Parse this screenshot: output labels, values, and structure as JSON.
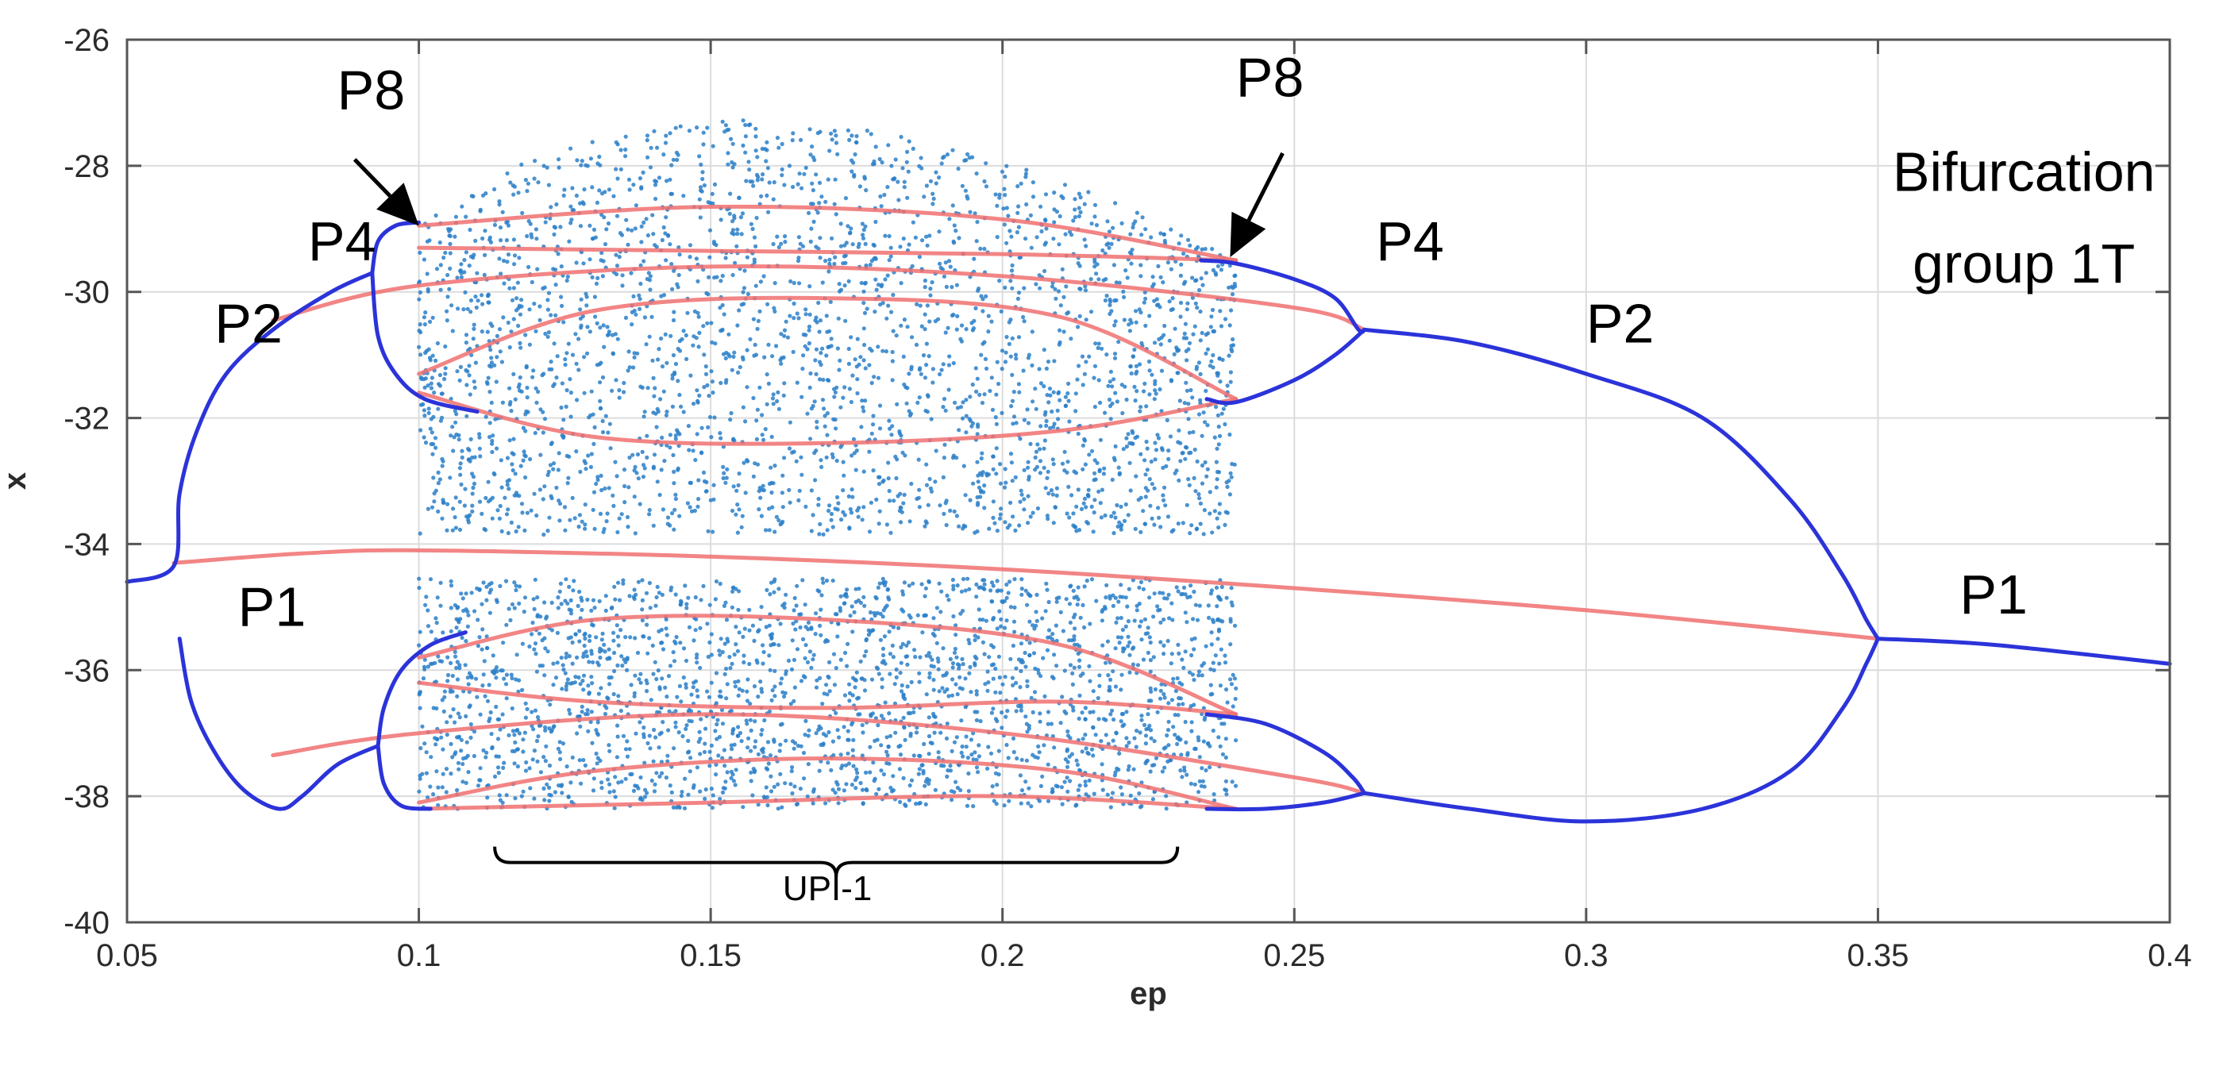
{
  "chart_data": {
    "type": "scatter",
    "title": "",
    "xlabel": "ep",
    "ylabel": "x",
    "xlim": [
      0.05,
      0.4
    ],
    "ylim": [
      -40,
      -26
    ],
    "x_ticks": [
      0.05,
      0.1,
      0.15,
      0.2,
      0.25,
      0.3,
      0.35,
      0.4
    ],
    "x_tick_labels": [
      "0.05",
      "0.1",
      "0.15",
      "0.2",
      "0.25",
      "0.3",
      "0.35",
      "0.4"
    ],
    "y_ticks": [
      -26,
      -28,
      -30,
      -32,
      -34,
      -36,
      -38,
      -40
    ],
    "y_tick_labels": [
      "-26",
      "-28",
      "-30",
      "-32",
      "-34",
      "-36",
      "-38",
      "-40"
    ],
    "grid": true,
    "colors": {
      "stable": "#2b33d9",
      "unstable": "#f07070",
      "chaos": "#2a7fc8",
      "frame": "#555555",
      "grid": "#dcdcdc"
    },
    "series": [
      {
        "kind": "stable-branch",
        "values": [
          [
            0.05,
            -34.6
          ],
          [
            0.058,
            -34.35
          ],
          [
            0.059,
            -33.2
          ],
          [
            0.062,
            -32.2
          ],
          [
            0.067,
            -31.3
          ],
          [
            0.075,
            -30.6
          ],
          [
            0.085,
            -30.0
          ],
          [
            0.092,
            -29.7
          ]
        ]
      },
      {
        "kind": "stable-branch",
        "values": [
          [
            0.059,
            -35.5
          ],
          [
            0.061,
            -36.5
          ],
          [
            0.065,
            -37.3
          ],
          [
            0.07,
            -37.9
          ],
          [
            0.076,
            -38.2
          ],
          [
            0.08,
            -38.0
          ],
          [
            0.086,
            -37.5
          ],
          [
            0.093,
            -37.2
          ]
        ]
      },
      {
        "kind": "stable-branch",
        "values": [
          [
            0.092,
            -29.7
          ],
          [
            0.093,
            -29.2
          ],
          [
            0.096,
            -28.95
          ],
          [
            0.1,
            -28.9
          ]
        ]
      },
      {
        "kind": "stable-branch",
        "values": [
          [
            0.092,
            -29.7
          ],
          [
            0.093,
            -30.7
          ],
          [
            0.096,
            -31.3
          ],
          [
            0.101,
            -31.7
          ],
          [
            0.11,
            -31.9
          ]
        ]
      },
      {
        "kind": "stable-branch",
        "values": [
          [
            0.093,
            -37.2
          ],
          [
            0.094,
            -36.6
          ],
          [
            0.097,
            -36.0
          ],
          [
            0.102,
            -35.6
          ],
          [
            0.108,
            -35.4
          ]
        ]
      },
      {
        "kind": "stable-branch",
        "values": [
          [
            0.093,
            -37.2
          ],
          [
            0.094,
            -37.8
          ],
          [
            0.097,
            -38.15
          ],
          [
            0.102,
            -38.2
          ]
        ]
      },
      {
        "kind": "stable-branch",
        "values": [
          [
            0.234,
            -29.5
          ],
          [
            0.24,
            -29.55
          ],
          [
            0.25,
            -29.8
          ],
          [
            0.257,
            -30.1
          ],
          [
            0.261,
            -30.6
          ],
          [
            0.262,
            -30.6
          ]
        ]
      },
      {
        "kind": "stable-branch",
        "values": [
          [
            0.235,
            -31.7
          ],
          [
            0.24,
            -31.75
          ],
          [
            0.25,
            -31.4
          ],
          [
            0.257,
            -31.0
          ],
          [
            0.262,
            -30.6
          ]
        ]
      },
      {
        "kind": "stable-branch",
        "values": [
          [
            0.262,
            -30.6
          ],
          [
            0.28,
            -30.8
          ],
          [
            0.3,
            -31.3
          ],
          [
            0.32,
            -32.0
          ],
          [
            0.335,
            -33.3
          ],
          [
            0.344,
            -34.5
          ],
          [
            0.348,
            -35.2
          ],
          [
            0.35,
            -35.5
          ]
        ]
      },
      {
        "kind": "stable-branch",
        "values": [
          [
            0.235,
            -36.7
          ],
          [
            0.245,
            -36.85
          ],
          [
            0.255,
            -37.3
          ],
          [
            0.26,
            -37.7
          ],
          [
            0.262,
            -37.95
          ]
        ]
      },
      {
        "kind": "stable-branch",
        "values": [
          [
            0.235,
            -38.2
          ],
          [
            0.245,
            -38.2
          ],
          [
            0.255,
            -38.1
          ],
          [
            0.262,
            -37.95
          ]
        ]
      },
      {
        "kind": "stable-branch",
        "values": [
          [
            0.262,
            -37.95
          ],
          [
            0.28,
            -38.2
          ],
          [
            0.3,
            -38.4
          ],
          [
            0.32,
            -38.2
          ],
          [
            0.335,
            -37.6
          ],
          [
            0.344,
            -36.6
          ],
          [
            0.348,
            -35.9
          ],
          [
            0.35,
            -35.5
          ]
        ]
      },
      {
        "kind": "stable-branch",
        "values": [
          [
            0.35,
            -35.5
          ],
          [
            0.37,
            -35.6
          ],
          [
            0.4,
            -35.9
          ]
        ]
      },
      {
        "kind": "unstable-branch",
        "values": [
          [
            0.058,
            -34.3
          ],
          [
            0.08,
            -34.15
          ],
          [
            0.1,
            -34.1
          ],
          [
            0.15,
            -34.2
          ],
          [
            0.2,
            -34.4
          ],
          [
            0.25,
            -34.7
          ],
          [
            0.3,
            -35.05
          ],
          [
            0.35,
            -35.5
          ]
        ]
      },
      {
        "kind": "unstable-branch",
        "values": [
          [
            0.075,
            -30.45
          ],
          [
            0.1,
            -29.9
          ],
          [
            0.15,
            -29.6
          ],
          [
            0.2,
            -29.75
          ],
          [
            0.25,
            -30.25
          ],
          [
            0.262,
            -30.6
          ]
        ]
      },
      {
        "kind": "unstable-branch",
        "values": [
          [
            0.075,
            -37.35
          ],
          [
            0.1,
            -37.0
          ],
          [
            0.15,
            -36.7
          ],
          [
            0.2,
            -37.0
          ],
          [
            0.25,
            -37.7
          ],
          [
            0.262,
            -37.95
          ]
        ]
      },
      {
        "kind": "unstable-branch",
        "values": [
          [
            0.1,
            -28.95
          ],
          [
            0.15,
            -28.65
          ],
          [
            0.2,
            -28.85
          ],
          [
            0.24,
            -29.5
          ]
        ]
      },
      {
        "kind": "unstable-branch",
        "values": [
          [
            0.1,
            -31.3
          ],
          [
            0.13,
            -30.3
          ],
          [
            0.17,
            -30.1
          ],
          [
            0.21,
            -30.4
          ],
          [
            0.24,
            -31.7
          ]
        ]
      },
      {
        "kind": "unstable-branch",
        "values": [
          [
            0.1,
            -31.6
          ],
          [
            0.13,
            -32.3
          ],
          [
            0.17,
            -32.4
          ],
          [
            0.21,
            -32.2
          ],
          [
            0.24,
            -31.7
          ]
        ]
      },
      {
        "kind": "unstable-branch",
        "values": [
          [
            0.1,
            -29.3
          ],
          [
            0.15,
            -29.35
          ],
          [
            0.2,
            -29.4
          ],
          [
            0.24,
            -29.5
          ]
        ]
      },
      {
        "kind": "unstable-branch",
        "values": [
          [
            0.1,
            -35.8
          ],
          [
            0.13,
            -35.2
          ],
          [
            0.17,
            -35.2
          ],
          [
            0.21,
            -35.6
          ],
          [
            0.24,
            -36.7
          ]
        ]
      },
      {
        "kind": "unstable-branch",
        "values": [
          [
            0.1,
            -36.2
          ],
          [
            0.13,
            -36.5
          ],
          [
            0.17,
            -36.6
          ],
          [
            0.21,
            -36.5
          ],
          [
            0.24,
            -36.7
          ]
        ]
      },
      {
        "kind": "unstable-branch",
        "values": [
          [
            0.1,
            -38.1
          ],
          [
            0.13,
            -37.6
          ],
          [
            0.17,
            -37.4
          ],
          [
            0.21,
            -37.6
          ],
          [
            0.24,
            -38.2
          ]
        ]
      },
      {
        "kind": "unstable-branch",
        "values": [
          [
            0.1,
            -38.2
          ],
          [
            0.15,
            -38.1
          ],
          [
            0.2,
            -38.0
          ],
          [
            0.24,
            -38.2
          ]
        ]
      }
    ],
    "chaotic_band": {
      "x_range": [
        0.1,
        0.24
      ],
      "upper_top": [
        [
          0.1,
          -28.9
        ],
        [
          0.12,
          -27.8
        ],
        [
          0.15,
          -27.25
        ],
        [
          0.18,
          -27.4
        ],
        [
          0.2,
          -27.9
        ],
        [
          0.22,
          -28.6
        ],
        [
          0.24,
          -29.5
        ]
      ],
      "lower_bottom": -38.2,
      "gap_center": -34.2
    },
    "annotations": [
      {
        "text": "P8",
        "x": 0.086,
        "y": -27.1
      },
      {
        "text": "P8",
        "x": 0.24,
        "y": -26.9
      },
      {
        "text": "P4",
        "x": 0.081,
        "y": -29.5
      },
      {
        "text": "P4",
        "x": 0.264,
        "y": -29.5
      },
      {
        "text": "P2",
        "x": 0.065,
        "y": -30.8
      },
      {
        "text": "P2",
        "x": 0.3,
        "y": -30.8
      },
      {
        "text": "P1",
        "x": 0.069,
        "y": -35.3
      },
      {
        "text": "P1",
        "x": 0.364,
        "y": -35.1
      },
      {
        "text": "Bifurcation",
        "x": 0.375,
        "y": -28.4
      },
      {
        "text": "group 1T",
        "x": 0.375,
        "y": -29.85
      },
      {
        "text": "UPI-1",
        "x": 0.17,
        "y": -39.65
      }
    ],
    "arrows": [
      {
        "from": [
          0.089,
          -27.9
        ],
        "to": [
          0.1,
          -28.95
        ]
      },
      {
        "from": [
          0.248,
          -27.8
        ],
        "to": [
          0.239,
          -29.45
        ]
      }
    ],
    "brace": {
      "x_range": [
        0.113,
        0.23
      ],
      "y": -38.8,
      "label": "UPI-1"
    }
  }
}
